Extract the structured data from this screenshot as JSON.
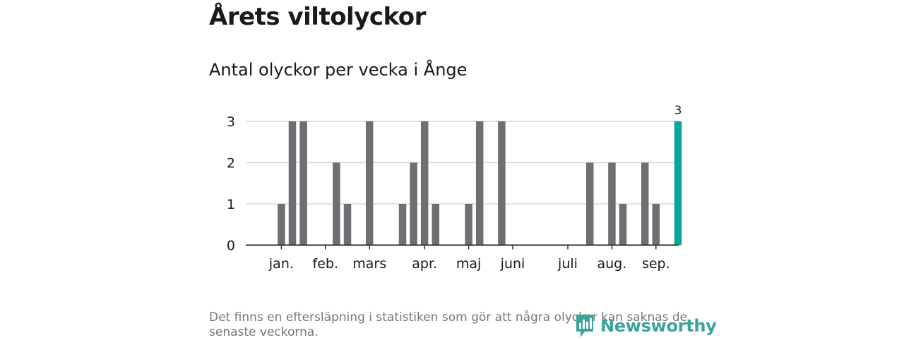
{
  "title": "Årets viltolyckor",
  "subtitle": "Antal olyckor per vecka i Ånge",
  "note": "Det finns en eftersläpning i statistiken som gör att några olyckor kan saknas de senaste veckorna.",
  "logo_text": "Newsworthy",
  "colors": {
    "bar": "#6e6e73",
    "highlight": "#0aa59a",
    "grid": "#d9d9d9",
    "axis": "#333333"
  },
  "chart_data": {
    "type": "bar",
    "title": "Antal olyckor per vecka i Ånge",
    "xlabel": "",
    "ylabel": "",
    "ylim": [
      0,
      3
    ],
    "yticks": [
      0,
      1,
      2,
      3
    ],
    "x_tick_labels": [
      {
        "label": "jan.",
        "week": 3
      },
      {
        "label": "feb.",
        "week": 7
      },
      {
        "label": "mars",
        "week": 11
      },
      {
        "label": "apr.",
        "week": 16
      },
      {
        "label": "maj",
        "week": 20
      },
      {
        "label": "juni",
        "week": 24
      },
      {
        "label": "juli",
        "week": 29
      },
      {
        "label": "aug.",
        "week": 33
      },
      {
        "label": "sep.",
        "week": 37
      }
    ],
    "weeks": [
      1,
      2,
      3,
      4,
      5,
      6,
      7,
      8,
      9,
      10,
      11,
      12,
      13,
      14,
      15,
      16,
      17,
      18,
      19,
      20,
      21,
      22,
      23,
      24,
      25,
      26,
      27,
      28,
      29,
      30,
      31,
      32,
      33,
      34,
      35,
      36,
      37,
      38,
      39
    ],
    "values": [
      0,
      0,
      1,
      3,
      3,
      0,
      0,
      2,
      1,
      0,
      3,
      0,
      0,
      1,
      2,
      3,
      1,
      0,
      0,
      1,
      3,
      0,
      3,
      0,
      0,
      0,
      0,
      0,
      0,
      0,
      2,
      0,
      2,
      1,
      0,
      2,
      1,
      0,
      3
    ],
    "highlight_week": 39,
    "data_labels": [
      {
        "week": 39,
        "label": "3"
      }
    ]
  }
}
